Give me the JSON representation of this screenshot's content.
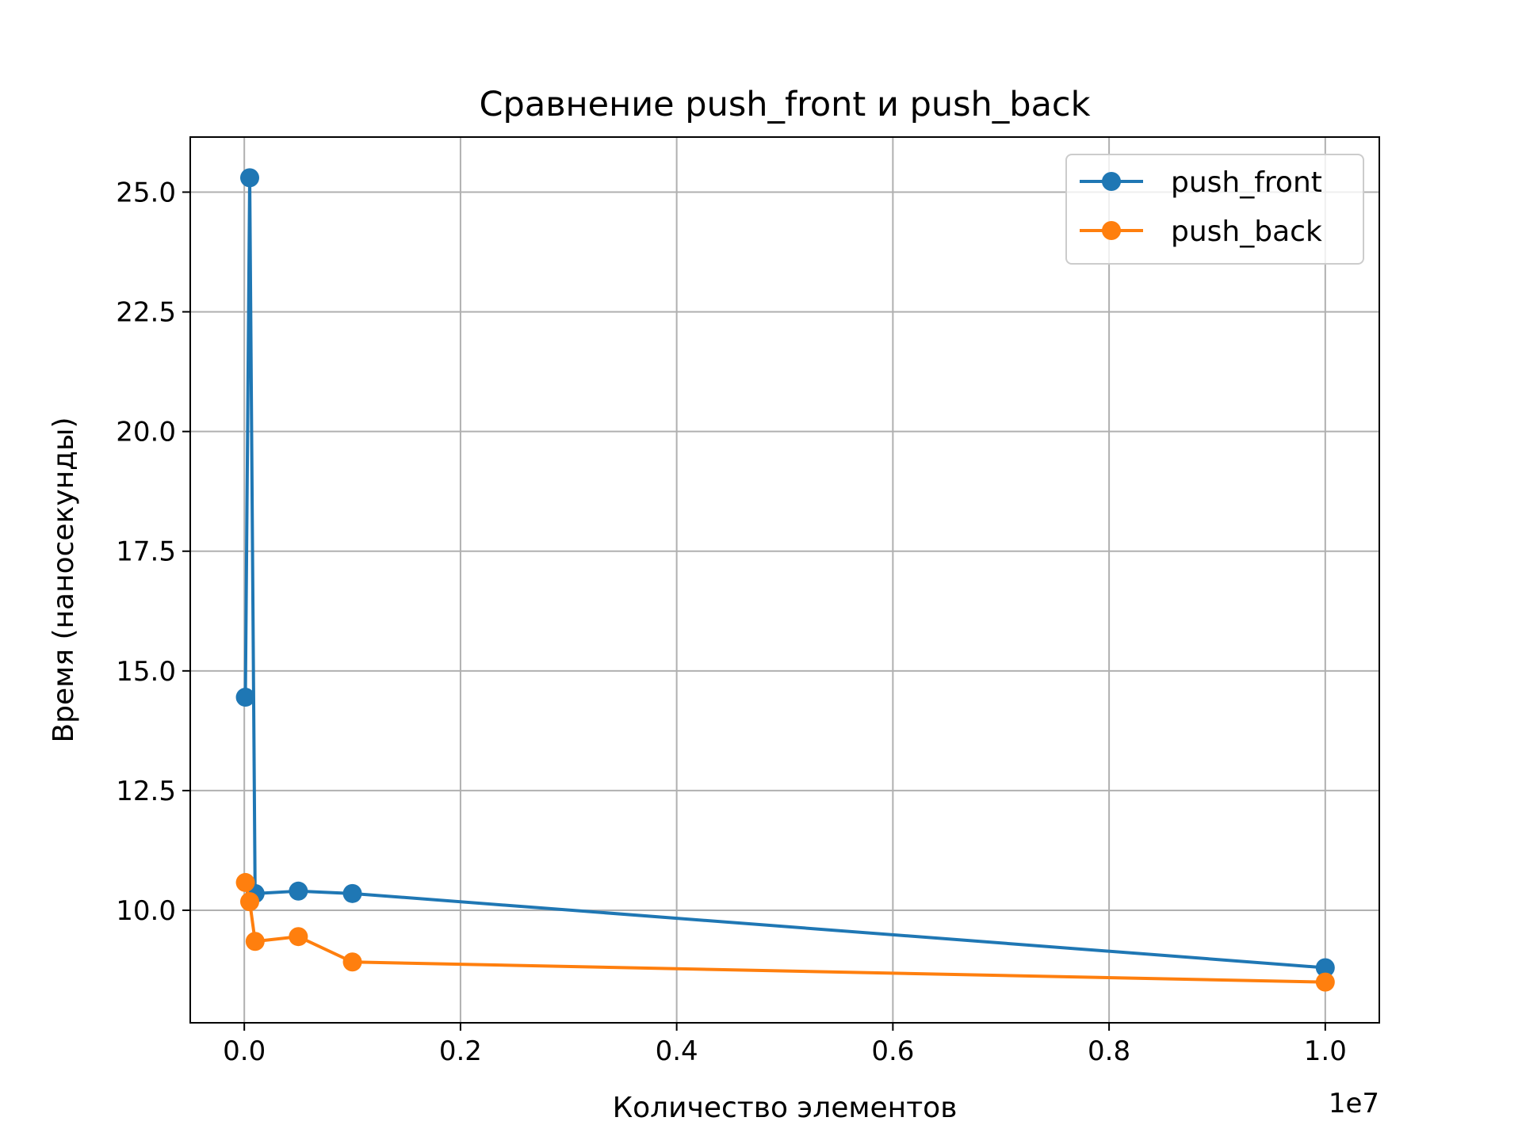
{
  "chart_data": {
    "type": "line",
    "title": "Сравнение push_front и push_back",
    "xlabel": "Количество элементов",
    "ylabel": "Время (наносекунды)",
    "x_offset_label": "1e7",
    "xlim": [
      -0.05,
      1.05
    ],
    "ylim": [
      7.65,
      26.15
    ],
    "xticks": [
      0.0,
      0.2,
      0.4,
      0.6,
      0.8,
      1.0
    ],
    "xtick_labels": [
      "0.0",
      "0.2",
      "0.4",
      "0.6",
      "0.8",
      "1.0"
    ],
    "yticks": [
      10.0,
      12.5,
      15.0,
      17.5,
      20.0,
      22.5,
      25.0
    ],
    "ytick_labels": [
      "10.0",
      "12.5",
      "15.0",
      "17.5",
      "20.0",
      "22.5",
      "25.0"
    ],
    "grid": true,
    "legend_position": "top-right",
    "series": [
      {
        "name": "push_front",
        "color": "#1f77b4",
        "x": [
          0.001,
          0.005,
          0.01,
          0.05,
          0.1,
          1.0
        ],
        "y": [
          14.45,
          25.3,
          10.35,
          10.4,
          10.35,
          8.8
        ]
      },
      {
        "name": "push_back",
        "color": "#ff7f0e",
        "x": [
          0.001,
          0.005,
          0.01,
          0.05,
          0.1,
          1.0
        ],
        "y": [
          10.58,
          10.18,
          9.35,
          9.45,
          8.92,
          8.5
        ]
      }
    ]
  }
}
